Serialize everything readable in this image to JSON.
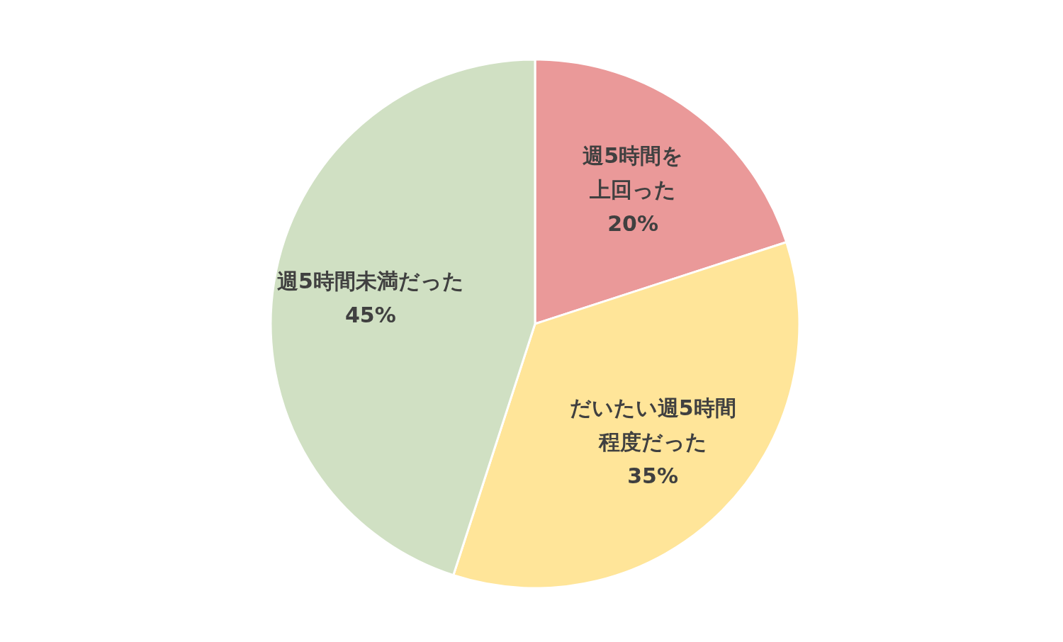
{
  "chart_data": {
    "type": "pie",
    "categories": [
      "週5時間を上回った",
      "だいたい週5時間程度だった",
      "週5時間未満だった"
    ],
    "values": [
      20,
      35,
      45
    ],
    "colors": [
      "#ea9999",
      "#ffe599",
      "#d0e0c3"
    ],
    "value_labels": [
      "20%",
      "35%",
      "45%"
    ],
    "legend": false
  }
}
